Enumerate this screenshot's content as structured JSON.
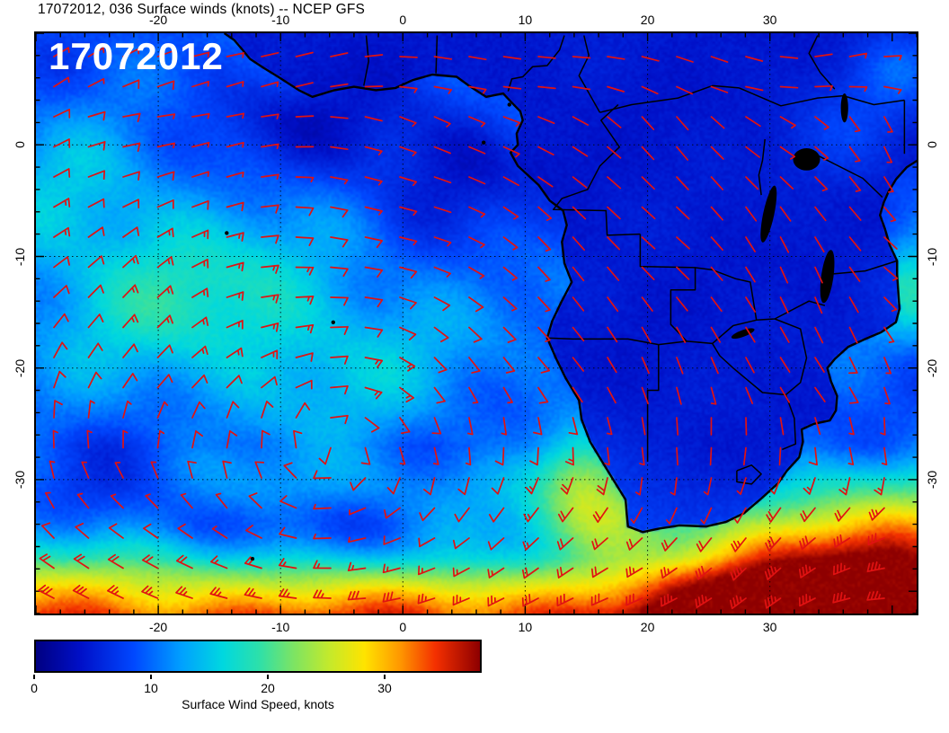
{
  "header": {
    "title": "17072012, 036 Surface winds (knots) -- NCEP GFS"
  },
  "map": {
    "date_overlay": "17072012",
    "x_ticks": [
      -20,
      -10,
      0,
      10,
      20,
      30
    ],
    "y_ticks": [
      0,
      -10,
      -20,
      -30
    ],
    "lon_range": [
      -30,
      42
    ],
    "lat_range": [
      10,
      -42
    ],
    "graticule_interval_deg": 10
  },
  "colors": {
    "wind_barbs": "#e01212",
    "coastline": "#000000",
    "graticule": "#000000",
    "date_overlay": "#ffffff",
    "axis_text": "#000000",
    "background": "#ffffff"
  },
  "colorbar": {
    "label": "Surface Wind Speed, knots",
    "ticks": [
      0,
      10,
      20,
      30
    ],
    "min": 0,
    "max": 38,
    "colormap": [
      {
        "t": 0.0,
        "c": "#000082"
      },
      {
        "t": 0.1,
        "c": "#0010c8"
      },
      {
        "t": 0.22,
        "c": "#0048ff"
      },
      {
        "t": 0.33,
        "c": "#00a2ff"
      },
      {
        "t": 0.42,
        "c": "#00d8e0"
      },
      {
        "t": 0.5,
        "c": "#2ce0ac"
      },
      {
        "t": 0.58,
        "c": "#7ce464"
      },
      {
        "t": 0.66,
        "c": "#c4ea2c"
      },
      {
        "t": 0.74,
        "c": "#ffe400"
      },
      {
        "t": 0.82,
        "c": "#ff9800"
      },
      {
        "t": 0.9,
        "c": "#f43000"
      },
      {
        "t": 1.0,
        "c": "#8e0000"
      }
    ]
  },
  "chart_data": {
    "type": "heatmap",
    "title": "17072012, 036 Surface winds (knots) -- NCEP GFS",
    "model": "NCEP GFS",
    "run_date": "17072012",
    "forecast_hour": "036",
    "variable": "Surface wind speed",
    "units": "knots",
    "overlay": "red wind barbs on a regular grid; black coastlines and country borders",
    "x_axis": {
      "name": "longitude_deg",
      "range": [
        -30,
        42
      ],
      "ticks": [
        -20,
        -10,
        0,
        10,
        20,
        30
      ]
    },
    "y_axis": {
      "name": "latitude_deg",
      "range": [
        -42,
        10
      ],
      "ticks": [
        0,
        -10,
        -20,
        -30
      ]
    },
    "colorbar": {
      "label": "Surface Wind Speed, knots",
      "range": [
        0,
        38
      ],
      "ticks": [
        0,
        10,
        20,
        30
      ]
    },
    "estimated_regional_speeds_knots": [
      {
        "region": "SW Indian Ocean storm SE of South Africa (25E-42E, 34S-42S)",
        "speed": [
          30,
          38
        ]
      },
      {
        "region": "Southern Ocean band along 38S-42S",
        "speed": [
          22,
          32
        ]
      },
      {
        "region": "Benguela coastal jet off Namibia / South Africa (12E-17E, 26S-32S)",
        "speed": [
          20,
          28
        ]
      },
      {
        "region": "South Atlantic trade-wind belt (28W-0E, 5S-25S)",
        "speed": [
          12,
          18
        ]
      },
      {
        "region": "Gulf of Guinea / equatorial Atlantic",
        "speed": [
          5,
          10
        ]
      },
      {
        "region": "African continental interior",
        "speed": [
          3,
          8
        ]
      },
      {
        "region": "Calm eddy band near 33S-36S west of 5E",
        "speed": [
          4,
          10
        ]
      }
    ]
  }
}
